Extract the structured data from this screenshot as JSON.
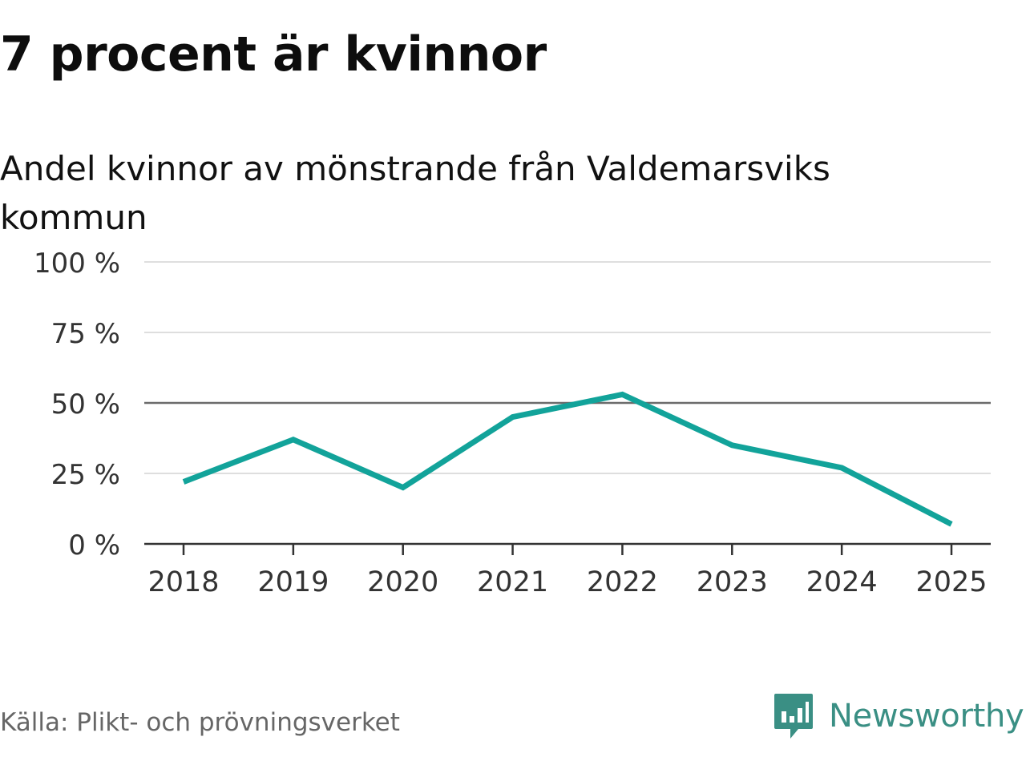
{
  "header": {
    "title": "7 procent är kvinnor",
    "subtitle": "Andel kvinnor av mönstrande från Valdemarsviks kommun"
  },
  "footer": {
    "source": "Källa: Plikt- och prövningsverket",
    "brand": "Newsworthy"
  },
  "colors": {
    "line": "#12a39a",
    "grid": "#dedede",
    "reference": "#6b6b6b",
    "axis": "#333333",
    "brand": "#3a8f84"
  },
  "icons": {
    "brand": "bar-chart-speech-bubble-icon"
  },
  "chart_data": {
    "type": "line",
    "title": "7 procent är kvinnor",
    "subtitle": "Andel kvinnor av mönstrande från Valdemarsviks kommun",
    "x": [
      "2018",
      "2019",
      "2020",
      "2021",
      "2022",
      "2023",
      "2024",
      "2025"
    ],
    "series": [
      {
        "values": [
          22,
          37,
          20,
          45,
          53,
          35,
          27,
          7
        ]
      }
    ],
    "ylim": [
      0,
      100
    ],
    "yticks": [
      0,
      25,
      50,
      75,
      100
    ],
    "ytick_labels": [
      "0 %",
      "25 %",
      "50 %",
      "75 %",
      "100 %"
    ],
    "reference_line": 50,
    "grid": true,
    "legend": "none"
  }
}
